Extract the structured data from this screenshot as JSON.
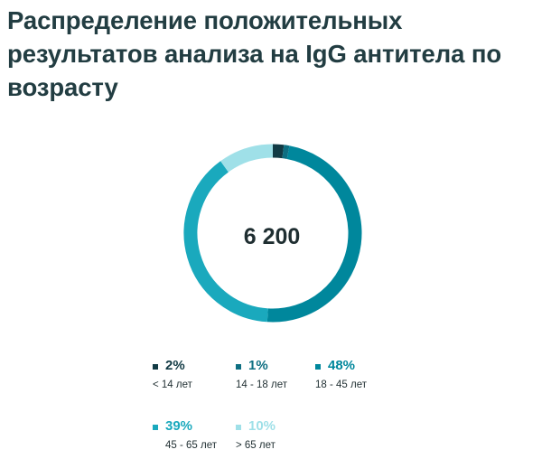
{
  "title": "Распределение положительных результатов анализа на IgG антитела по возрасту",
  "center_value": "6 200",
  "chart_data": {
    "type": "pie",
    "title": "Распределение положительных результатов анализа на IgG антитела по возрасту",
    "total_label": "6 200",
    "categories": [
      "< 14 лет",
      "14 - 18 лет",
      "18 - 45 лет",
      "45 - 65 лет",
      "> 65 лет"
    ],
    "values": [
      2,
      1,
      48,
      39,
      10
    ],
    "value_labels": [
      "2%",
      "1%",
      "48%",
      "39%",
      "10%"
    ],
    "unit": "%",
    "colors": [
      "#123b45",
      "#0e6f82",
      "#00879c",
      "#1aa9bd",
      "#9fe0e8"
    ],
    "legend_placement": "bottom"
  }
}
